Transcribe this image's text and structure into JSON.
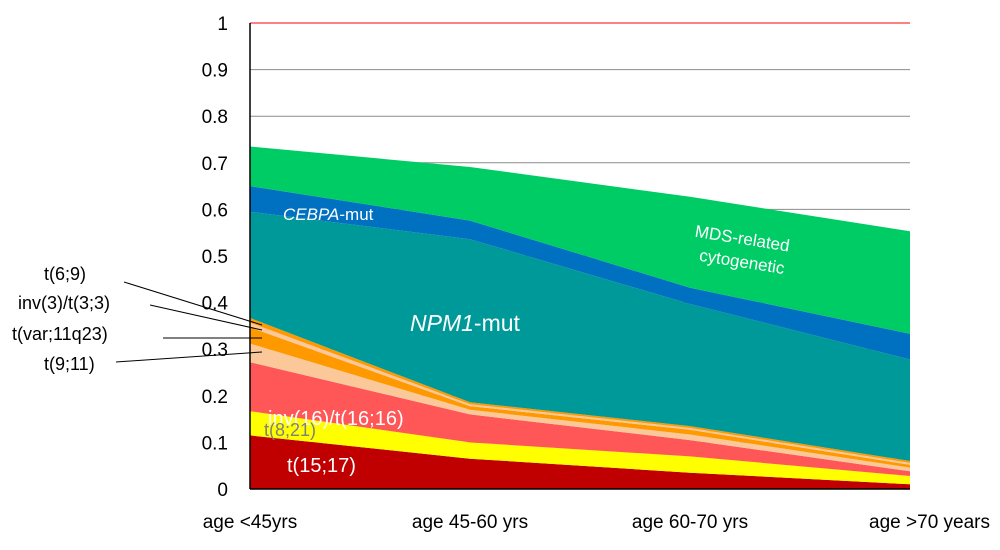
{
  "chart_data": {
    "type": "area",
    "stacked": true,
    "categories": [
      "age <45yrs",
      "age 45-60 yrs",
      "age 60-70 yrs",
      "age >70 years"
    ],
    "ylim": [
      0,
      1
    ],
    "yticks": [
      "0",
      "0.1",
      "0.2",
      "0.3",
      "0.4",
      "0.5",
      "0.6",
      "0.7",
      "0.8",
      "0.9",
      "1"
    ],
    "grid": true,
    "series": [
      {
        "name": "t(15;17)",
        "color": "#c00000",
        "values": [
          0.115,
          0.065,
          0.035,
          0.01
        ]
      },
      {
        "name": "t(8;21)",
        "color": "#ffff00",
        "values": [
          0.052,
          0.035,
          0.035,
          0.018
        ]
      },
      {
        "name": "inv(16)/t(16;16)",
        "color": "#ff5757",
        "values": [
          0.105,
          0.06,
          0.035,
          0.01
        ]
      },
      {
        "name": "t(9;11)",
        "color": "#fbc899",
        "values": [
          0.04,
          0.01,
          0.012,
          0.008
        ]
      },
      {
        "name": "t(var;11q23)",
        "color": "#ff9900",
        "values": [
          0.035,
          0.008,
          0.01,
          0.006
        ]
      },
      {
        "name": "inv(3)/t(3;3)",
        "color": "#fbc899",
        "values": [
          0.01,
          0.004,
          0.004,
          0.004
        ]
      },
      {
        "name": "t(6;9)",
        "color": "#ff9900",
        "values": [
          0.01,
          0.004,
          0.004,
          0.004
        ]
      },
      {
        "name": "NPM1-mut",
        "color": "#009999",
        "values": [
          0.228,
          0.35,
          0.262,
          0.218
        ]
      },
      {
        "name": "CEBPA-mut",
        "color": "#0070c0",
        "values": [
          0.055,
          0.04,
          0.035,
          0.055
        ]
      },
      {
        "name": "MDS-related cytogenetic",
        "color": "#00cc66",
        "values": [
          0.085,
          0.115,
          0.195,
          0.22
        ]
      }
    ],
    "reference_line": {
      "value": 1,
      "color": "#ff0000"
    },
    "annotations": {
      "npm1": {
        "italic": "NPM1",
        "rest": "-mut"
      },
      "cebpa": {
        "italic": "CEBPA",
        "rest": "-mut"
      },
      "mds_line1": "MDS-related",
      "mds_line2": "cytogenetic",
      "inv16": "inv(16)/t(16;16)",
      "t821": "t(8;21)",
      "t1517": "t(15;17)",
      "t69": "t(6;9)",
      "inv3": "inv(3)/t(3;3)",
      "tvar": "t(var;11q23)",
      "t911": "t(9;11)"
    }
  }
}
